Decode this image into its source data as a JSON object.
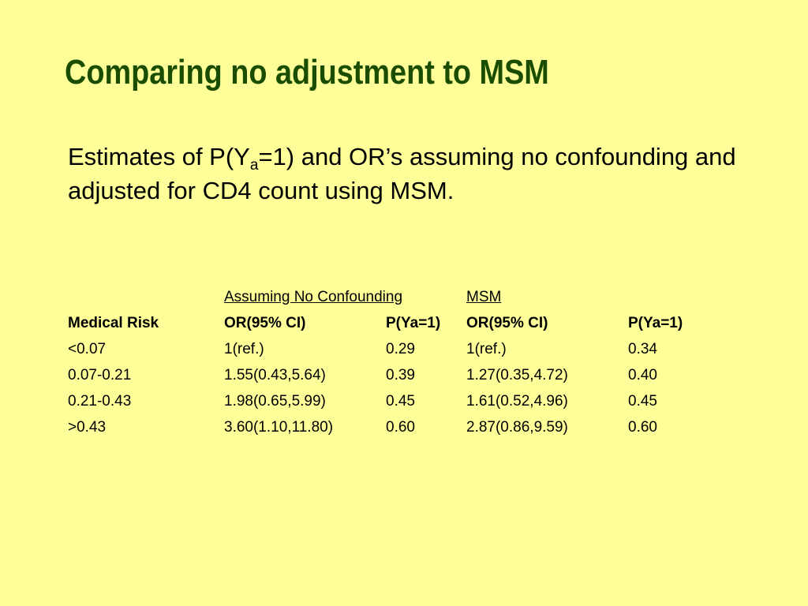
{
  "slide": {
    "title": "Comparing no adjustment to MSM",
    "body": {
      "part1": "Estimates of P(Y",
      "subscript": "a",
      "part2": "=1) and OR’s assuming no confounding and adjusted for CD4 count using MSM."
    }
  },
  "table": {
    "groups": {
      "no_confounding": "Assuming No Confounding",
      "msm": "MSM"
    },
    "headers": [
      "Medical Risk",
      "OR(95% CI)",
      "P(Ya=1)",
      "OR(95% CI)",
      "P(Ya=1)"
    ],
    "rows": [
      [
        "<0.07",
        "1(ref.)",
        "0.29",
        "1(ref.)",
        "0.34"
      ],
      [
        "0.07-0.21",
        "1.55(0.43,5.64)",
        "0.39",
        "1.27(0.35,4.72)",
        "0.40"
      ],
      [
        "0.21-0.43",
        "1.98(0.65,5.99)",
        "0.45",
        "1.61(0.52,4.96)",
        "0.45"
      ],
      [
        ">0.43",
        "3.60(1.10,11.80)",
        "0.60",
        "2.87(0.86,9.59)",
        "0.60"
      ]
    ]
  },
  "colors": {
    "background": "#ffff99",
    "title": "#1a4d00",
    "text": "#000000"
  }
}
